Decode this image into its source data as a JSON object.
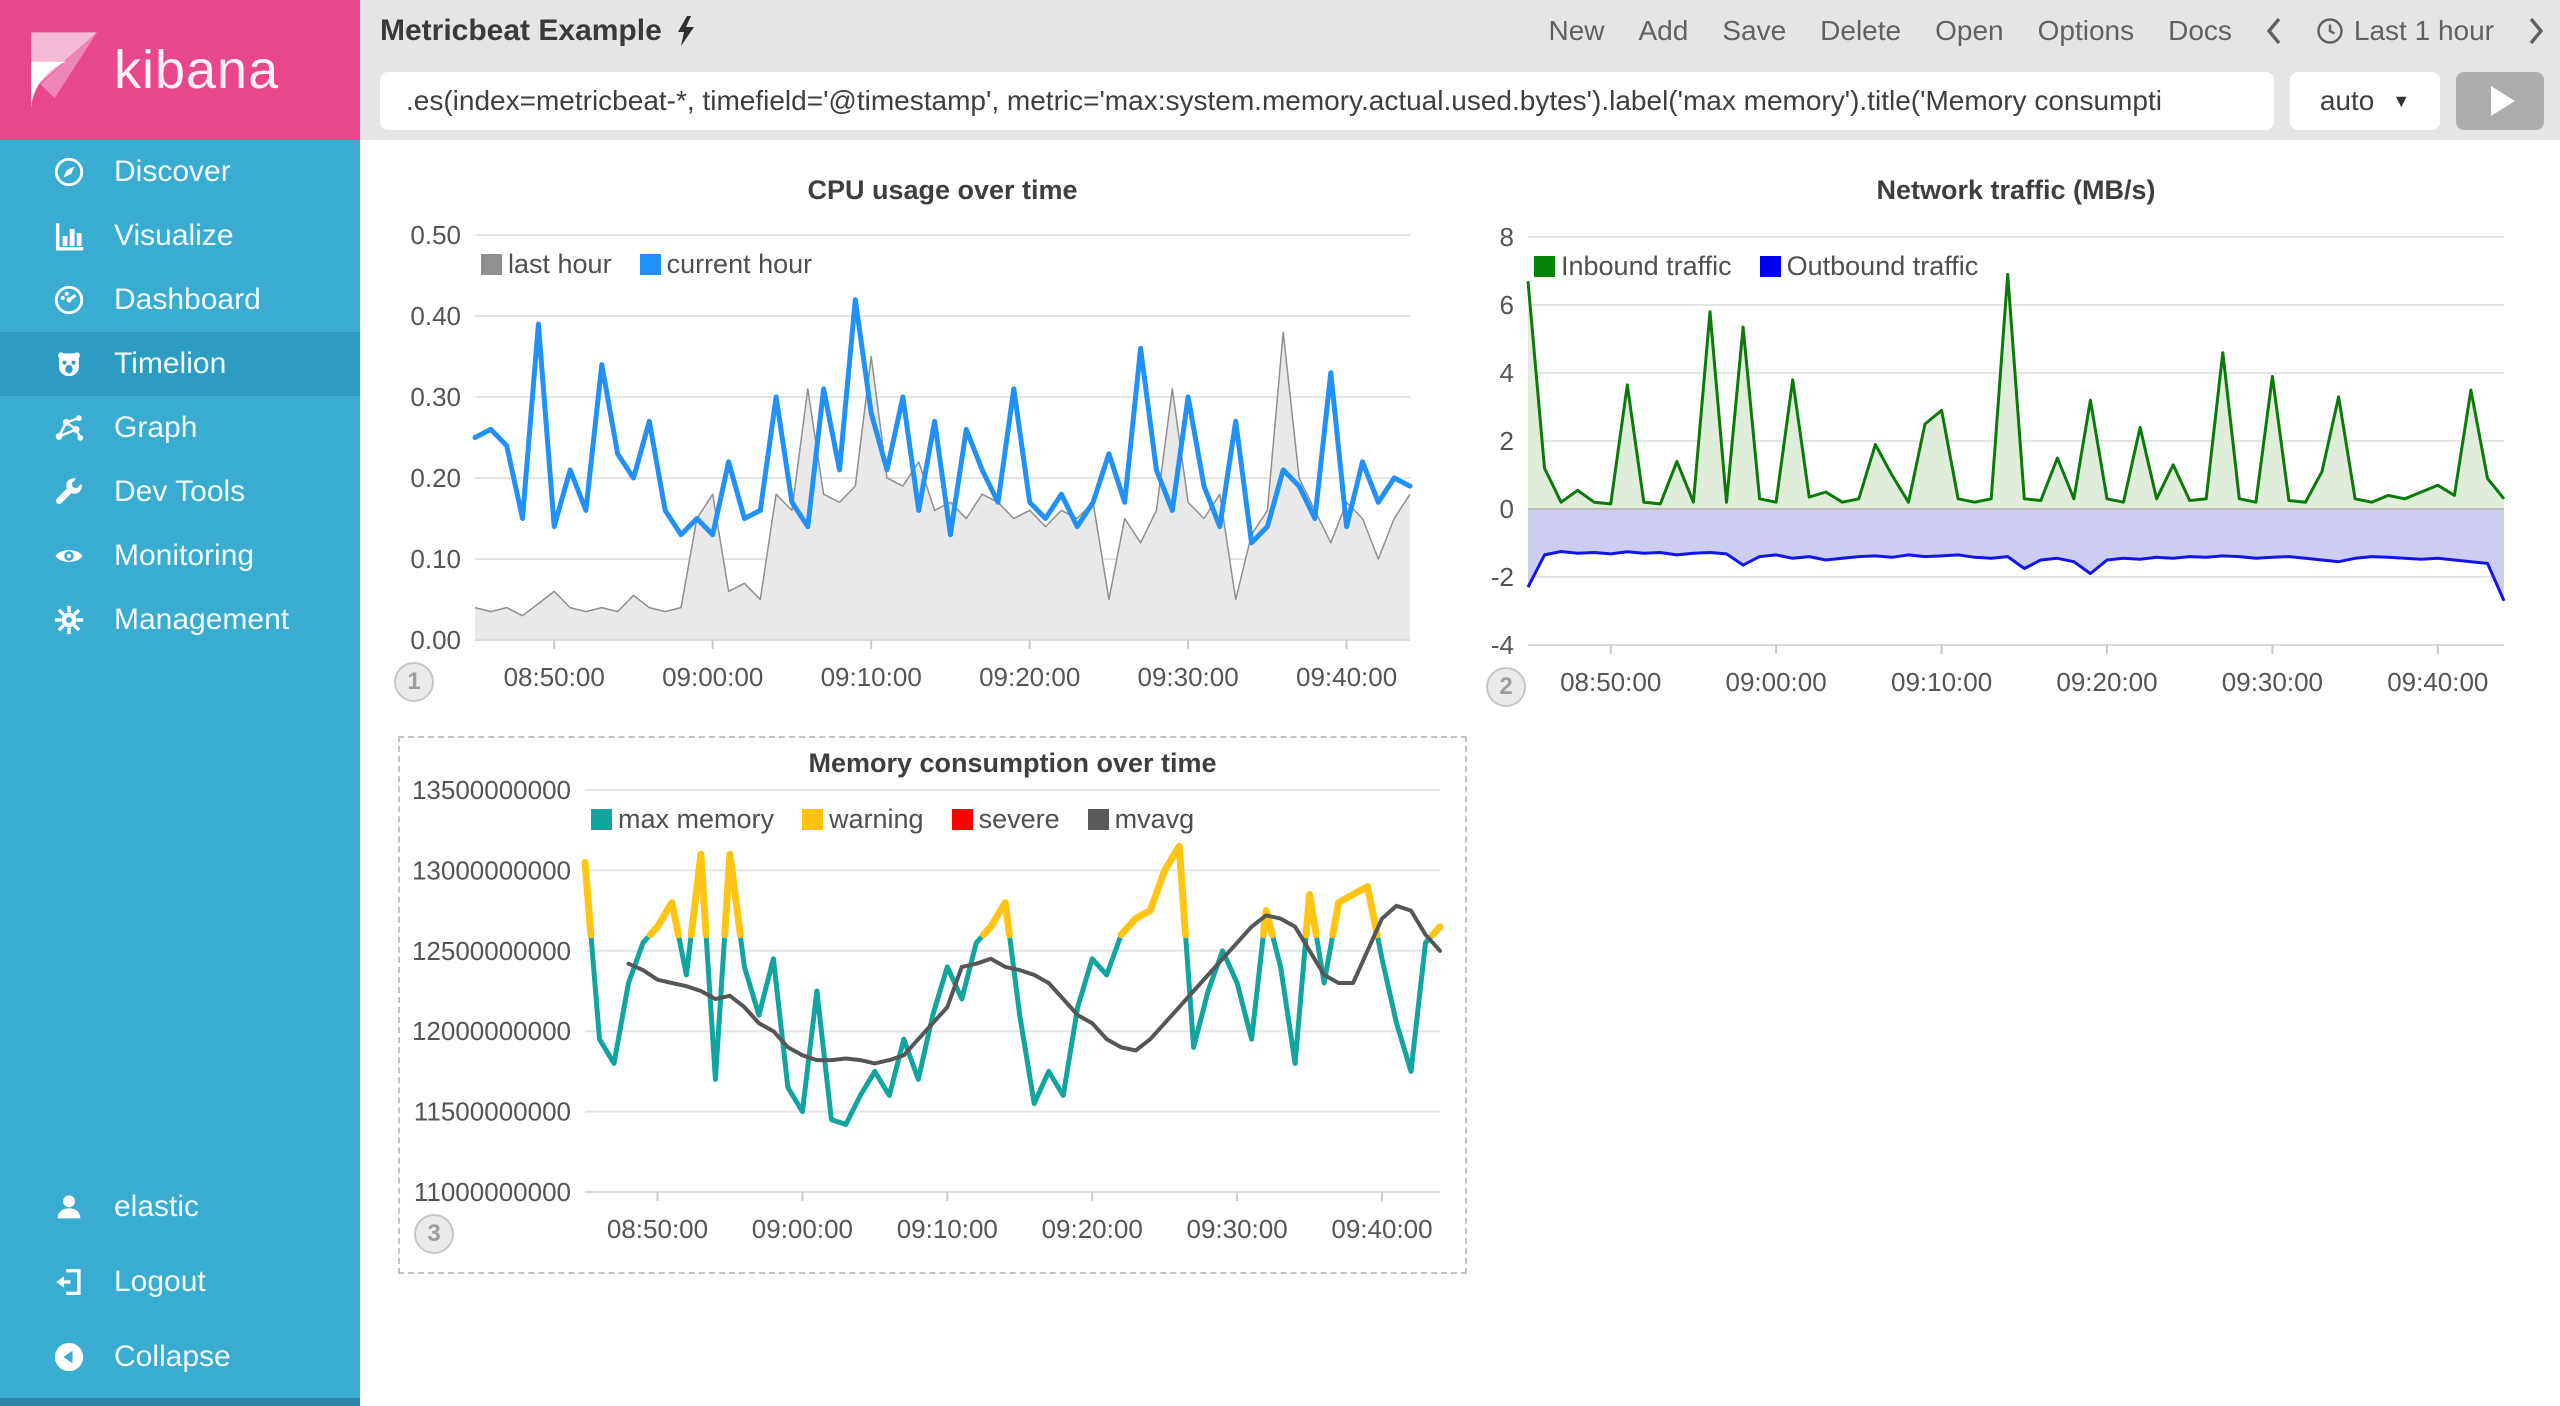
{
  "sidebar": {
    "logo_text": "kibana",
    "items": [
      {
        "label": "Discover"
      },
      {
        "label": "Visualize"
      },
      {
        "label": "Dashboard"
      },
      {
        "label": "Timelion",
        "selected": true
      },
      {
        "label": "Graph"
      },
      {
        "label": "Dev Tools"
      },
      {
        "label": "Monitoring"
      },
      {
        "label": "Management"
      }
    ],
    "footer_items": [
      {
        "label": "elastic"
      },
      {
        "label": "Logout"
      },
      {
        "label": "Collapse"
      }
    ]
  },
  "topbar": {
    "title": "Metricbeat Example",
    "menu": [
      "New",
      "Add",
      "Save",
      "Delete",
      "Open",
      "Options",
      "Docs"
    ],
    "time_label": "Last 1 hour",
    "interval_value": "auto",
    "caret_icon": "▼"
  },
  "query": {
    "value": ".es(index=metricbeat-*, timefield='@timestamp', metric='max:system.memory.actual.used.bytes').label('max memory').title('Memory consumpti"
  },
  "chart_data": [
    {
      "id": "cpu",
      "type": "line",
      "title": "CPU usage over time",
      "badge": "1",
      "x_domain": [
        0,
        59
      ],
      "x_tick_positions": [
        5,
        15,
        25,
        35,
        45,
        55
      ],
      "x_tick_labels": [
        "08:50:00",
        "09:00:00",
        "09:10:00",
        "09:20:00",
        "09:30:00",
        "09:40:00"
      ],
      "ylim": [
        0,
        0.5
      ],
      "ytick_values": [
        0,
        0.1,
        0.2,
        0.3,
        0.4,
        0.5
      ],
      "ytick_labels": [
        "0.00",
        "0.10",
        "0.20",
        "0.30",
        "0.40",
        "0.50"
      ],
      "grid": true,
      "legend_position": "top-left",
      "series": [
        {
          "name": "last hour",
          "type": "area",
          "color": "#8F8F8F",
          "swatch": "#909090",
          "fill": "#E9E9E9",
          "width": 1.5,
          "values": [
            0.04,
            0.035,
            0.04,
            0.03,
            0.045,
            0.06,
            0.04,
            0.035,
            0.04,
            0.035,
            0.055,
            0.04,
            0.035,
            0.04,
            0.15,
            0.18,
            0.06,
            0.07,
            0.05,
            0.18,
            0.16,
            0.31,
            0.18,
            0.17,
            0.19,
            0.35,
            0.2,
            0.19,
            0.22,
            0.16,
            0.17,
            0.15,
            0.18,
            0.17,
            0.15,
            0.16,
            0.14,
            0.16,
            0.15,
            0.17,
            0.05,
            0.15,
            0.12,
            0.16,
            0.31,
            0.17,
            0.15,
            0.18,
            0.05,
            0.13,
            0.16,
            0.38,
            0.2,
            0.16,
            0.12,
            0.17,
            0.15,
            0.1,
            0.15,
            0.18
          ]
        },
        {
          "name": "current hour",
          "type": "line",
          "color": "#2191F7",
          "swatch": "#2191F7",
          "width": 5,
          "values": [
            0.25,
            0.26,
            0.24,
            0.15,
            0.39,
            0.14,
            0.21,
            0.16,
            0.34,
            0.23,
            0.2,
            0.27,
            0.16,
            0.13,
            0.15,
            0.13,
            0.22,
            0.15,
            0.16,
            0.3,
            0.17,
            0.14,
            0.31,
            0.21,
            0.42,
            0.28,
            0.21,
            0.3,
            0.16,
            0.27,
            0.13,
            0.26,
            0.21,
            0.17,
            0.31,
            0.17,
            0.15,
            0.18,
            0.14,
            0.17,
            0.23,
            0.17,
            0.36,
            0.21,
            0.16,
            0.3,
            0.19,
            0.14,
            0.27,
            0.12,
            0.14,
            0.21,
            0.19,
            0.15,
            0.33,
            0.14,
            0.22,
            0.17,
            0.2,
            0.19
          ]
        }
      ]
    },
    {
      "id": "network",
      "type": "area",
      "title": "Network traffic (MB/s)",
      "badge": "2",
      "x_domain": [
        0,
        59
      ],
      "x_tick_positions": [
        5,
        15,
        25,
        35,
        45,
        55
      ],
      "x_tick_labels": [
        "08:50:00",
        "09:00:00",
        "09:10:00",
        "09:20:00",
        "09:30:00",
        "09:40:00"
      ],
      "ylim": [
        -4,
        8
      ],
      "ytick_values": [
        -4,
        -2,
        0,
        2,
        4,
        6,
        8
      ],
      "ytick_labels": [
        "-4",
        "-2",
        "0",
        "2",
        "4",
        "6",
        "8"
      ],
      "grid": true,
      "zero_line": true,
      "legend_position": "top-left",
      "series": [
        {
          "name": "Inbound traffic",
          "type": "area",
          "color": "#0B7A0B",
          "swatch": "#078207",
          "fill": "#DFEDDA",
          "width": 3,
          "values": [
            6.7,
            1.2,
            0.2,
            0.55,
            0.2,
            0.15,
            3.65,
            0.2,
            0.15,
            1.4,
            0.2,
            5.8,
            0.2,
            5.35,
            0.3,
            0.2,
            3.8,
            0.35,
            0.5,
            0.2,
            0.3,
            1.9,
            1.0,
            0.2,
            2.5,
            2.9,
            0.3,
            0.2,
            0.3,
            6.9,
            0.3,
            0.25,
            1.5,
            0.3,
            3.2,
            0.3,
            0.2,
            2.4,
            0.3,
            1.3,
            0.25,
            0.3,
            4.6,
            0.3,
            0.2,
            3.9,
            0.25,
            0.2,
            1.1,
            3.3,
            0.3,
            0.2,
            0.4,
            0.3,
            0.5,
            0.7,
            0.4,
            3.5,
            0.9,
            0.3
          ]
        },
        {
          "name": "Outbound traffic",
          "type": "area",
          "color": "#1414E8",
          "swatch": "#0000F0",
          "fill": "#CDCDF2",
          "width": 3,
          "values": [
            -2.3,
            -1.35,
            -1.25,
            -1.3,
            -1.28,
            -1.32,
            -1.26,
            -1.3,
            -1.28,
            -1.35,
            -1.3,
            -1.28,
            -1.32,
            -1.65,
            -1.4,
            -1.35,
            -1.45,
            -1.4,
            -1.5,
            -1.45,
            -1.4,
            -1.38,
            -1.42,
            -1.35,
            -1.4,
            -1.38,
            -1.35,
            -1.42,
            -1.45,
            -1.4,
            -1.75,
            -1.5,
            -1.45,
            -1.55,
            -1.9,
            -1.5,
            -1.45,
            -1.48,
            -1.42,
            -1.45,
            -1.4,
            -1.42,
            -1.38,
            -1.4,
            -1.45,
            -1.42,
            -1.4,
            -1.45,
            -1.5,
            -1.55,
            -1.45,
            -1.4,
            -1.42,
            -1.45,
            -1.48,
            -1.45,
            -1.5,
            -1.55,
            -1.6,
            -2.7
          ]
        }
      ]
    },
    {
      "id": "memory",
      "type": "line",
      "title": "Memory consumption over time",
      "badge": "3",
      "x_domain": [
        0,
        59
      ],
      "x_tick_positions": [
        5,
        15,
        25,
        35,
        45,
        55
      ],
      "x_tick_labels": [
        "08:50:00",
        "09:00:00",
        "09:10:00",
        "09:20:00",
        "09:30:00",
        "09:40:00"
      ],
      "y_unit": "bytes (values in billions)",
      "ylim": [
        11.0,
        13.5
      ],
      "ytick_values": [
        11.0,
        11.5,
        12.0,
        12.5,
        13.0,
        13.5
      ],
      "ytick_labels": [
        "11000000000",
        "11500000000",
        "12000000000",
        "12500000000",
        "13000000000",
        "13500000000"
      ],
      "grid": true,
      "legend_position": "top-left",
      "series": [
        {
          "name": "max memory",
          "type": "line",
          "color": "#12A49E",
          "swatch": "#12A49E",
          "width": 5,
          "values": [
            13.05,
            11.95,
            11.8,
            12.3,
            12.55,
            12.65,
            12.8,
            12.35,
            13.1,
            11.7,
            13.1,
            12.4,
            12.1,
            12.45,
            11.65,
            11.5,
            12.25,
            11.45,
            11.42,
            11.6,
            11.75,
            11.6,
            11.95,
            11.7,
            12.1,
            12.4,
            12.2,
            12.55,
            12.65,
            12.8,
            12.1,
            11.55,
            11.75,
            11.6,
            12.15,
            12.45,
            12.35,
            12.6,
            12.7,
            12.75,
            13.0,
            13.15,
            11.9,
            12.25,
            12.5,
            12.3,
            11.95,
            12.75,
            12.4,
            11.8,
            12.85,
            12.3,
            12.8,
            12.85,
            12.9,
            12.45,
            12.05,
            11.75,
            12.55,
            12.65
          ]
        },
        {
          "name": "warning",
          "type": "overlay",
          "color": "#FFC514",
          "swatch": "#FFC30F",
          "width": 7,
          "base": 0,
          "threshold": 12.6
        },
        {
          "name": "severe",
          "type": "overlay",
          "color": "#FF0000",
          "swatch": "#FF0000",
          "width": 7,
          "base": 0,
          "threshold": 13.5
        },
        {
          "name": "mvavg",
          "type": "line",
          "color": "#565656",
          "swatch": "#5A5A5A",
          "width": 4,
          "values": [
            null,
            null,
            null,
            12.42,
            12.38,
            12.32,
            12.3,
            12.28,
            12.25,
            12.2,
            12.22,
            12.15,
            12.05,
            12.0,
            11.9,
            11.85,
            11.82,
            11.82,
            11.83,
            11.82,
            11.8,
            11.82,
            11.85,
            11.95,
            12.05,
            12.15,
            12.4,
            12.42,
            12.45,
            12.4,
            12.38,
            12.35,
            12.3,
            12.2,
            12.1,
            12.05,
            11.95,
            11.9,
            11.88,
            11.95,
            12.05,
            12.15,
            12.25,
            12.35,
            12.45,
            12.55,
            12.65,
            12.72,
            12.7,
            12.65,
            12.5,
            12.35,
            12.3,
            12.3,
            12.5,
            12.7,
            12.78,
            12.75,
            12.6,
            12.5
          ]
        }
      ]
    }
  ]
}
